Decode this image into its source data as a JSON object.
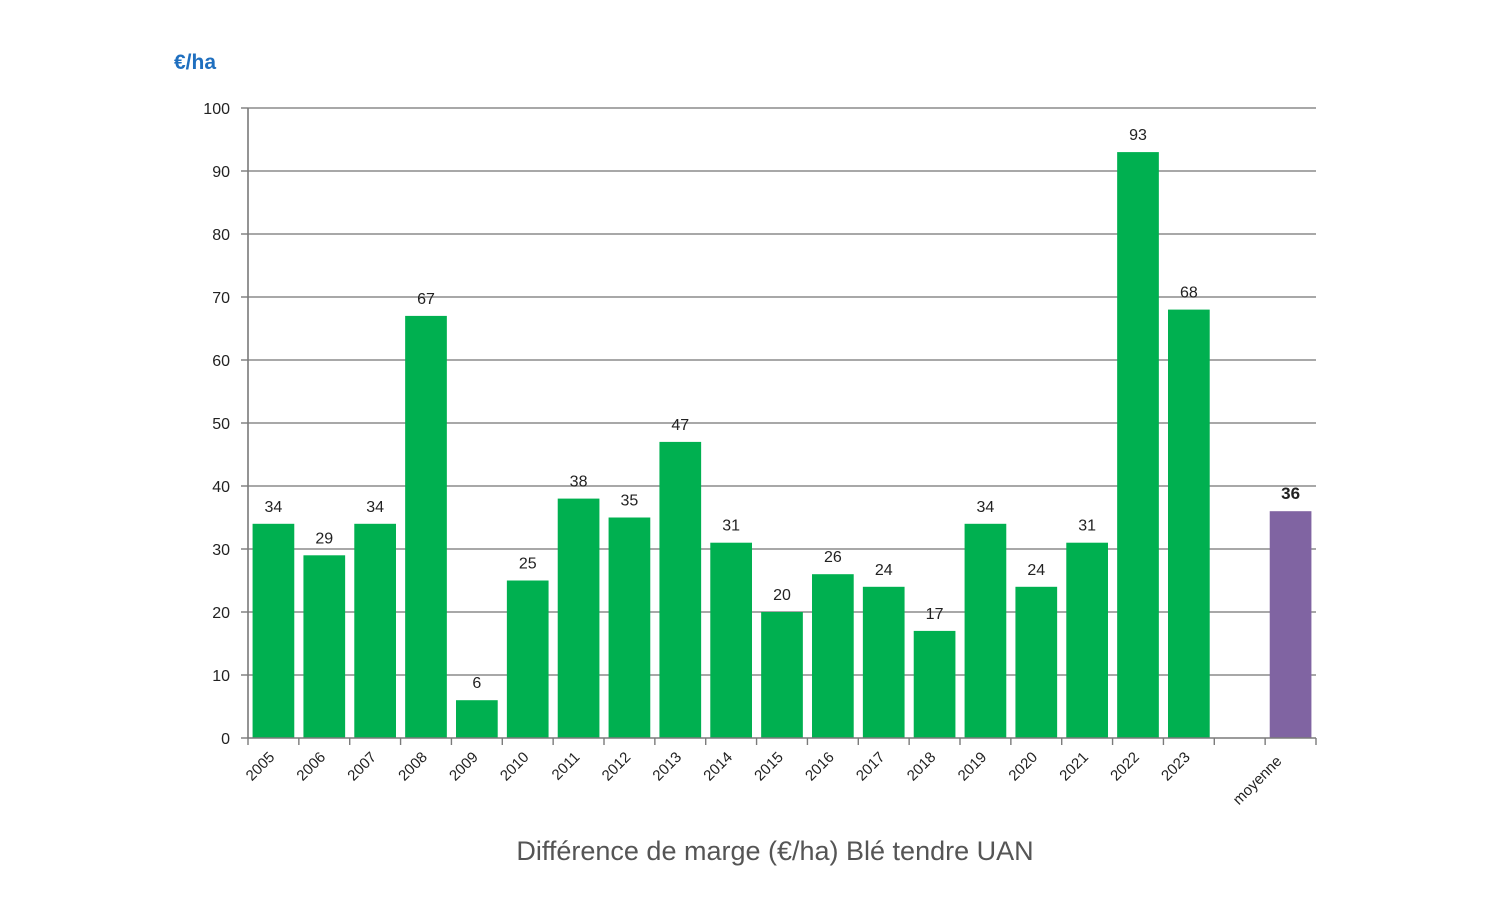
{
  "chart_data": {
    "type": "bar",
    "title": "Différence de marge (€/ha) Blé tendre  UAN",
    "ylabel": "€/ha",
    "xlabel": "",
    "ylim": [
      0,
      100
    ],
    "yticks": [
      0,
      10,
      20,
      30,
      40,
      50,
      60,
      70,
      80,
      90,
      100
    ],
    "grid": true,
    "categories": [
      "2005",
      "2006",
      "2007",
      "2008",
      "2009",
      "2010",
      "2011",
      "2012",
      "2013",
      "2014",
      "2015",
      "2016",
      "2017",
      "2018",
      "2019",
      "2020",
      "2021",
      "2022",
      "2023",
      "",
      "moyenne"
    ],
    "values": [
      34,
      29,
      34,
      67,
      6,
      25,
      38,
      35,
      47,
      31,
      20,
      26,
      24,
      17,
      34,
      24,
      31,
      93,
      68,
      null,
      36
    ],
    "labels": [
      "34",
      "29",
      "34",
      "67",
      "6",
      "25",
      "38",
      "35",
      "47",
      "31",
      "20",
      "26",
      "24",
      "17",
      "34",
      "24",
      "31",
      "93",
      "68",
      "",
      "36"
    ],
    "colors": {
      "bar": "#00b050",
      "average_bar": "#8064a2",
      "unit_label": "#1f6fbf"
    }
  }
}
